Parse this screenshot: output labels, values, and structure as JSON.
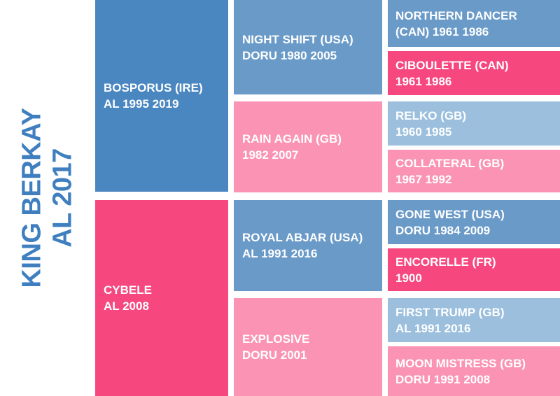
{
  "horse": {
    "name": "KING BERKAY",
    "line2": "AL 2017",
    "color": "#3f7fc0"
  },
  "colors": {
    "sire_gen1": "#4a86c0",
    "dam_gen1": "#f6477f",
    "sire_gen2": "#6a9ac8",
    "dam_gen2": "#fb93b5",
    "sire_gen3": "#6a9ac8",
    "dam_gen3": "#f6477f",
    "light_sire_gen3": "#9bbfdd",
    "light_dam_gen3": "#fb93b5"
  },
  "pedigree": {
    "sire": {
      "line1": "BOSPORUS (IRE)",
      "line2": "AL 1995 2019"
    },
    "dam": {
      "line1": "CYBELE",
      "line2": "AL 2008"
    },
    "sire_sire": {
      "line1": "NIGHT SHIFT (USA)",
      "line2": "DORU 1980 2005"
    },
    "sire_dam": {
      "line1": "RAIN AGAIN (GB)",
      "line2": "1982 2007"
    },
    "dam_sire": {
      "line1": "ROYAL ABJAR (USA)",
      "line2": "AL 1991 2016"
    },
    "dam_dam": {
      "line1": "EXPLOSIVE",
      "line2": "DORU 2001"
    },
    "sss": {
      "line1": "NORTHERN DANCER",
      "line2": "(CAN) 1961 1986"
    },
    "ssd": {
      "line1": "CIBOULETTE (CAN)",
      "line2": "1961 1986"
    },
    "sds": {
      "line1": "RELKO (GB)",
      "line2": "1960 1985"
    },
    "sdd": {
      "line1": "COLLATERAL (GB)",
      "line2": "1967 1992"
    },
    "dss": {
      "line1": "GONE WEST (USA)",
      "line2": "DORU 1984 2009"
    },
    "dsd": {
      "line1": "ENCORELLE (FR)",
      "line2": "1900"
    },
    "dds": {
      "line1": "FIRST TRUMP (GB)",
      "line2": "AL 1991 2016"
    },
    "ddd": {
      "line1": "MOON MISTRESS (GB)",
      "line2": "DORU 1991 2008"
    }
  }
}
